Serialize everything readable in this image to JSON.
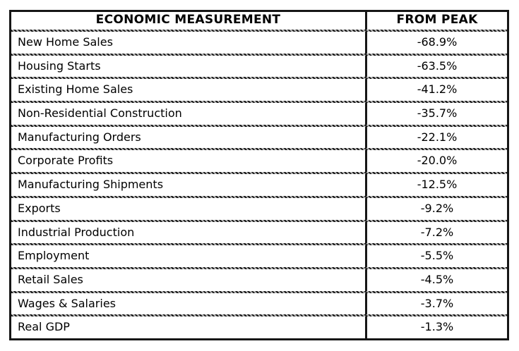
{
  "table": {
    "columns": [
      "ECONOMIC MEASUREMENT",
      "FROM PEAK"
    ],
    "rows": [
      [
        "New Home Sales",
        "-68.9%"
      ],
      [
        "Housing Starts",
        "-63.5%"
      ],
      [
        "Existing Home Sales",
        "-41.2%"
      ],
      [
        "Non-Residential Construction",
        "-35.7%"
      ],
      [
        "Manufacturing Orders",
        "-22.1%"
      ],
      [
        "Corporate Profits",
        "-20.0%"
      ],
      [
        "Manufacturing Shipments",
        "-12.5%"
      ],
      [
        "Exports",
        "-9.2%"
      ],
      [
        "Industrial Production",
        "-7.2%"
      ],
      [
        "Employment",
        "-5.5%"
      ],
      [
        "Retail Sales",
        "-4.5%"
      ],
      [
        "Wages & Salaries",
        "-3.7%"
      ],
      [
        "Real GDP",
        "-1.3%"
      ]
    ],
    "colors": {
      "border": "#161616",
      "text": "#000000",
      "background": "#ffffff"
    }
  },
  "chart_data": {
    "type": "table",
    "title": "",
    "columns": [
      "ECONOMIC MEASUREMENT",
      "FROM PEAK"
    ],
    "categories": [
      "New Home Sales",
      "Housing Starts",
      "Existing Home Sales",
      "Non-Residential Construction",
      "Manufacturing Orders",
      "Corporate Profits",
      "Manufacturing Shipments",
      "Exports",
      "Industrial Production",
      "Employment",
      "Retail Sales",
      "Wages & Salaries",
      "Real GDP"
    ],
    "values": [
      -68.9,
      -63.5,
      -41.2,
      -35.7,
      -22.1,
      -20.0,
      -12.5,
      -9.2,
      -7.2,
      -5.5,
      -4.5,
      -3.7,
      -1.3
    ],
    "value_format": "percent",
    "layout": {
      "grid": true,
      "header_bold": true,
      "values_centered": true,
      "labels_left_aligned": true
    }
  }
}
